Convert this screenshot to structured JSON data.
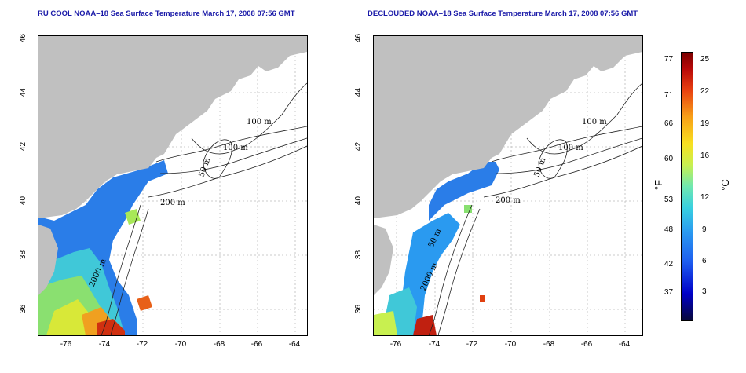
{
  "panels": [
    {
      "title": "RU COOL NOAA–18 Sea Surface Temperature March 17, 2008 07:56 GMT",
      "contour_labels": [
        "100 m",
        "100 m",
        "50 m",
        "200 m",
        "2000 m"
      ]
    },
    {
      "title": "DECLOUDED NOAA–18 Sea Surface Temperature March 17, 2008 07:56 GMT",
      "contour_labels": [
        "100 m",
        "100 m",
        "50 m",
        "200 m",
        "2000 m",
        "50 m"
      ]
    }
  ],
  "x_ticks": [
    "-76",
    "-74",
    "-72",
    "-70",
    "-68",
    "-66",
    "-64"
  ],
  "y_ticks": [
    "36",
    "38",
    "40",
    "42",
    "44",
    "46"
  ],
  "colorbar": {
    "fahrenheit_label": "°F",
    "celsius_label": "°C",
    "fahrenheit_ticks": [
      "77",
      "71",
      "66",
      "60",
      "53",
      "48",
      "42",
      "37"
    ],
    "celsius_ticks": [
      "25",
      "22",
      "19",
      "16",
      "12",
      "9",
      "6",
      "3"
    ]
  },
  "colors": {
    "land": "#c0c0c0",
    "title": "#1a1aa8",
    "grid": "#bbbbbb"
  }
}
